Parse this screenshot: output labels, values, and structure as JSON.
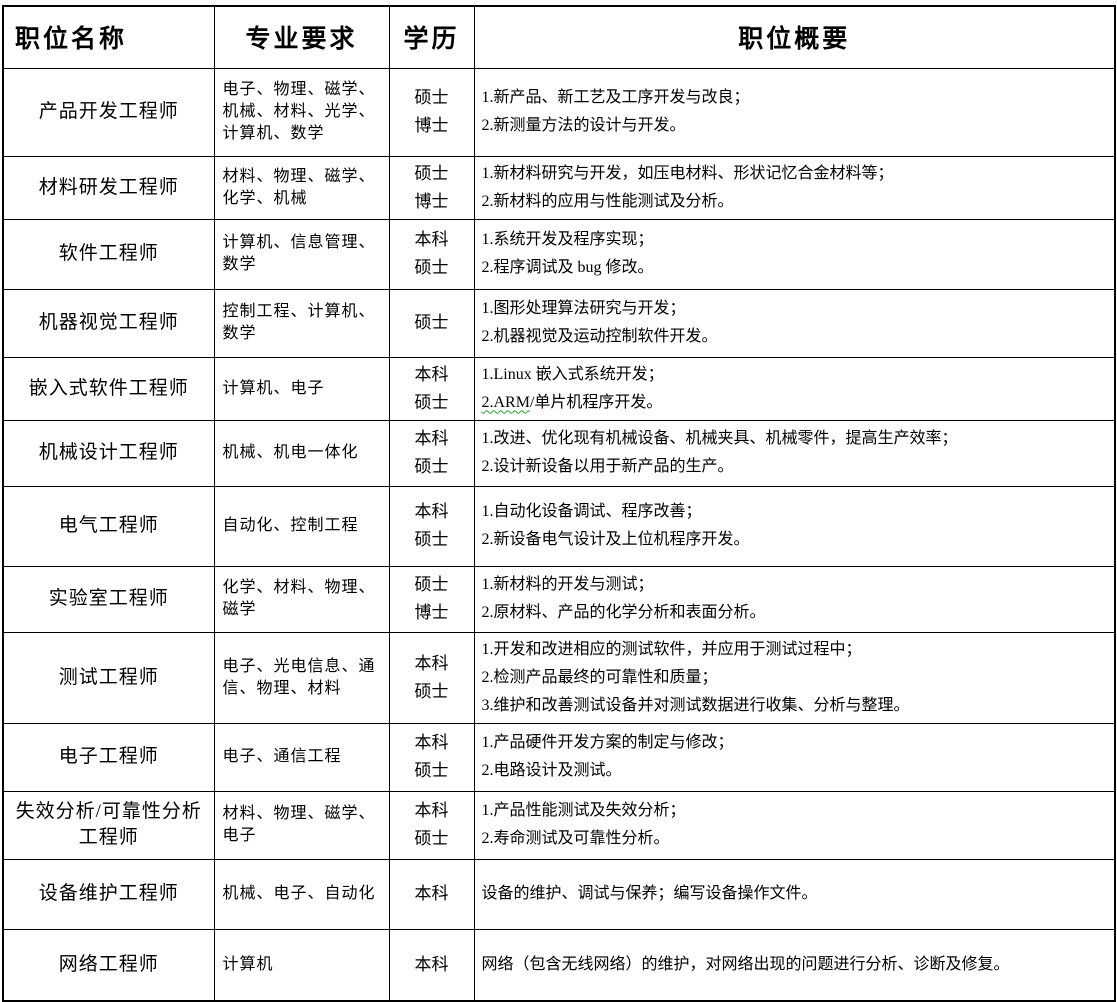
{
  "table": {
    "columns": [
      "职位名称",
      "专业要求",
      "学历",
      "职位概要"
    ],
    "rows": [
      {
        "position": "产品开发工程师",
        "majors": "电子、物理、磁学、机械、材料、光学、计算机、数学",
        "degrees": [
          "硕士",
          "博士"
        ],
        "summary": [
          "1.新产品、新工艺及工序开发与改良；",
          "2.新测量方法的设计与开发。"
        ]
      },
      {
        "position": "材料研发工程师",
        "majors": "材料、物理、磁学、化学、机械",
        "degrees": [
          "硕士",
          "博士"
        ],
        "summary": [
          "1.新材料研究与开发，如压电材料、形状记忆合金材料等；",
          "2.新材料的应用与性能测试及分析。"
        ]
      },
      {
        "position": "软件工程师",
        "majors": "计算机、信息管理、数学",
        "degrees": [
          "本科",
          "硕士"
        ],
        "summary": [
          "1.系统开发及程序实现；",
          "2.程序调试及 bug 修改。"
        ]
      },
      {
        "position": "机器视觉工程师",
        "majors": "控制工程、计算机、数学",
        "degrees": [
          "硕士"
        ],
        "summary": [
          "1.图形处理算法研究与开发；",
          "2.机器视觉及运动控制软件开发。"
        ]
      },
      {
        "position": "嵌入式软件工程师",
        "majors": "计算机、电子",
        "degrees": [
          "本科",
          "硕士"
        ],
        "summary": [
          "1.Linux 嵌入式系统开发；",
          "2.ARM/单片机程序开发。"
        ],
        "squiggle_prefix": "2.ARM"
      },
      {
        "position": "机械设计工程师",
        "majors": "机械、机电一体化",
        "degrees": [
          "本科",
          "硕士"
        ],
        "summary": [
          "1.改进、优化现有机械设备、机械夹具、机械零件，提高生产效率；",
          "2.设计新设备以用于新产品的生产。"
        ]
      },
      {
        "position": "电气工程师",
        "majors": "自动化、控制工程",
        "degrees": [
          "本科",
          "硕士"
        ],
        "summary": [
          "1.自动化设备调试、程序改善；",
          "2.新设备电气设计及上位机程序开发。"
        ]
      },
      {
        "position": "实验室工程师",
        "majors": "化学、材料、物理、磁学",
        "degrees": [
          "硕士",
          "博士"
        ],
        "summary": [
          "1.新材料的开发与测试；",
          "2.原材料、产品的化学分析和表面分析。"
        ]
      },
      {
        "position": "测试工程师",
        "majors": "电子、光电信息、通信、物理、材料",
        "degrees": [
          "本科",
          "硕士"
        ],
        "summary": [
          "1.开发和改进相应的测试软件，并应用于测试过程中；",
          "2.检测产品最终的可靠性和质量；",
          "3.维护和改善测试设备并对测试数据进行收集、分析与整理。"
        ]
      },
      {
        "position": "电子工程师",
        "majors": "电子、通信工程",
        "degrees": [
          "本科",
          "硕士"
        ],
        "summary": [
          "1.产品硬件开发方案的制定与修改；",
          "2.电路设计及测试。"
        ]
      },
      {
        "position": "失效分析/可靠性分析工程师",
        "majors": "材料、物理、磁学、电子",
        "degrees": [
          "本科",
          "硕士"
        ],
        "summary": [
          "1.产品性能测试及失效分析；",
          "2.寿命测试及可靠性分析。"
        ]
      },
      {
        "position": "设备维护工程师",
        "majors": "机械、电子、自动化",
        "degrees": [
          "本科"
        ],
        "summary": [
          "设备的维护、调试与保养；编写设备操作文件。"
        ]
      },
      {
        "position": "网络工程师",
        "majors": "计算机",
        "degrees": [
          "本科"
        ],
        "summary": [
          "网络（包含无线网络）的维护，对网络出现的问题进行分析、诊断及修复。"
        ]
      }
    ]
  }
}
